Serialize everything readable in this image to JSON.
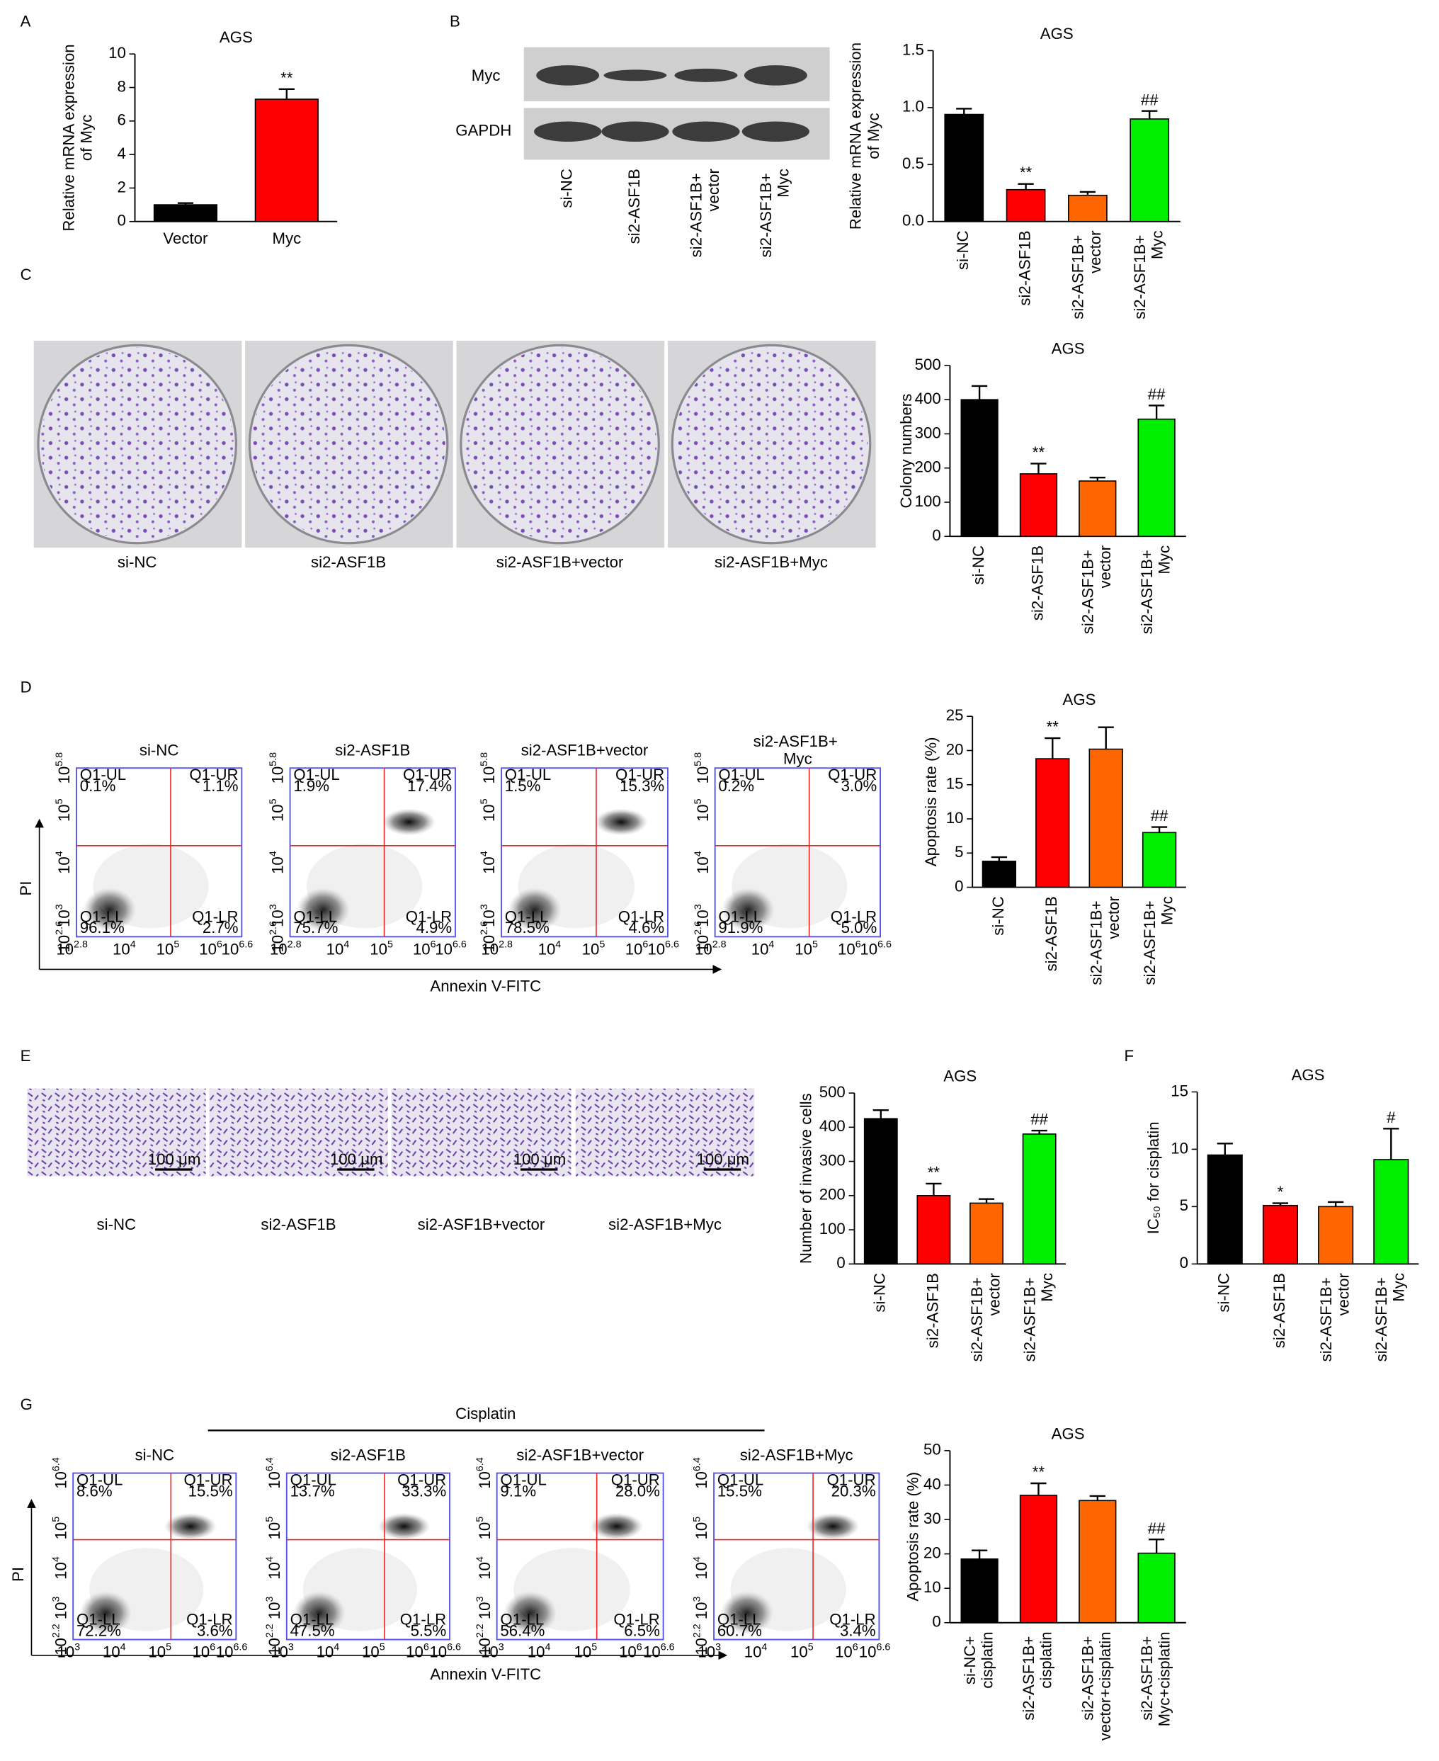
{
  "panel_letters": [
    "A",
    "B",
    "C",
    "D",
    "E",
    "F",
    "G"
  ],
  "blot": {
    "bands": [
      "Myc",
      "GAPDH"
    ],
    "lanes": [
      "si-NC",
      "si2-ASF1B",
      "si2-ASF1B+ vector",
      "si2-ASF1B+ Myc"
    ]
  },
  "colony_images": {
    "captions": [
      "si-NC",
      "si2-ASF1B",
      "si2-ASF1B+vector",
      "si2-ASF1B+Myc"
    ]
  },
  "invasion_images": {
    "captions": [
      "si-NC",
      "si2-ASF1B",
      "si2-ASF1B+vector",
      "si2-ASF1B+Myc"
    ],
    "scale_bars": [
      "100 μm",
      "100 μm",
      "100 μm",
      "100 μm"
    ]
  },
  "flow_D": {
    "x_label": "Annexin V-FITC",
    "y_label": "PI",
    "x_ticks": [
      {
        "base": "10",
        "exp": "2.8"
      },
      {
        "base": "10",
        "exp": "4"
      },
      {
        "base": "10",
        "exp": "5"
      },
      {
        "base": "10",
        "exp": "6"
      },
      {
        "base": "10",
        "exp": "6.6"
      }
    ],
    "y_ticks": [
      {
        "base": "10",
        "exp": "2.6"
      },
      {
        "base": "10",
        "exp": "3"
      },
      {
        "base": "10",
        "exp": "4"
      },
      {
        "base": "10",
        "exp": "5"
      },
      {
        "base": "10",
        "exp": "5.8"
      }
    ],
    "plots": [
      {
        "title": "si-NC",
        "quadrants": [
          {
            "name": "Q1-UL",
            "value": "0.1%"
          },
          {
            "name": "Q1-UR",
            "value": "1.1%"
          },
          {
            "name": "Q1-LL",
            "value": "96.1%"
          },
          {
            "name": "Q1-LR",
            "value": "2.7%"
          }
        ]
      },
      {
        "title": "si2-ASF1B",
        "quadrants": [
          {
            "name": "Q1-UL",
            "value": "1.9%"
          },
          {
            "name": "Q1-UR",
            "value": "17.4%"
          },
          {
            "name": "Q1-LL",
            "value": "75.7%"
          },
          {
            "name": "Q1-LR",
            "value": "4.9%"
          }
        ]
      },
      {
        "title": "si2-ASF1B+vector",
        "quadrants": [
          {
            "name": "Q1-UL",
            "value": "1.5%"
          },
          {
            "name": "Q1-UR",
            "value": "15.3%"
          },
          {
            "name": "Q1-LL",
            "value": "78.5%"
          },
          {
            "name": "Q1-LR",
            "value": "4.6%"
          }
        ]
      },
      {
        "title": "si2-ASF1B+ Myc",
        "quadrants": [
          {
            "name": "Q1-UL",
            "value": "0.2%"
          },
          {
            "name": "Q1-UR",
            "value": "3.0%"
          },
          {
            "name": "Q1-LL",
            "value": "91.9%"
          },
          {
            "name": "Q1-LR",
            "value": "5.0%"
          }
        ]
      }
    ]
  },
  "flow_G": {
    "treatment": "Cisplatin",
    "x_label": "Annexin V-FITC",
    "y_label": "PI",
    "x_ticks": [
      {
        "base": "10",
        "exp": "3"
      },
      {
        "base": "10",
        "exp": "4"
      },
      {
        "base": "10",
        "exp": "5"
      },
      {
        "base": "10",
        "exp": "6"
      },
      {
        "base": "10",
        "exp": "6.6"
      }
    ],
    "y_ticks": [
      {
        "base": "10",
        "exp": "2.2"
      },
      {
        "base": "10",
        "exp": "3"
      },
      {
        "base": "10",
        "exp": "4"
      },
      {
        "base": "10",
        "exp": "5"
      },
      {
        "base": "10",
        "exp": "6.4"
      }
    ],
    "plots": [
      {
        "title": "si-NC",
        "quadrants": [
          {
            "name": "Q1-UL",
            "value": "8.6%"
          },
          {
            "name": "Q1-UR",
            "value": "15.5%"
          },
          {
            "name": "Q1-LL",
            "value": "72.2%"
          },
          {
            "name": "Q1-LR",
            "value": "3.6%"
          }
        ]
      },
      {
        "title": "si2-ASF1B",
        "quadrants": [
          {
            "name": "Q1-UL",
            "value": "13.7%"
          },
          {
            "name": "Q1-UR",
            "value": "33.3%"
          },
          {
            "name": "Q1-LL",
            "value": "47.5%"
          },
          {
            "name": "Q1-LR",
            "value": "5.5%"
          }
        ]
      },
      {
        "title": "si2-ASF1B+vector",
        "quadrants": [
          {
            "name": "Q1-UL",
            "value": "9.1%"
          },
          {
            "name": "Q1-UR",
            "value": "28.0%"
          },
          {
            "name": "Q1-LL",
            "value": "56.4%"
          },
          {
            "name": "Q1-LR",
            "value": "6.5%"
          }
        ]
      },
      {
        "title": "si2-ASF1B+Myc",
        "quadrants": [
          {
            "name": "Q1-UL",
            "value": "15.5%"
          },
          {
            "name": "Q1-UR",
            "value": "20.3%"
          },
          {
            "name": "Q1-LL",
            "value": "60.7%"
          },
          {
            "name": "Q1-LR",
            "value": "3.4%"
          }
        ]
      }
    ]
  },
  "chart_data": [
    {
      "type": "bar",
      "title": "AGS",
      "ylabel": [
        "Relative mRNA expression",
        "of Myc"
      ],
      "categories": [
        "Vector",
        "Myc"
      ],
      "values": [
        1.0,
        7.3
      ],
      "errors": [
        0.1,
        0.6
      ],
      "colors": [
        "#000000",
        "#ff0000"
      ],
      "annotations": [
        null,
        "**"
      ],
      "ylim": [
        0,
        10
      ],
      "yticks": [
        0,
        2,
        4,
        6,
        8,
        10
      ]
    },
    {
      "type": "bar",
      "title": "AGS",
      "ylabel": [
        "Relative mRNA expression",
        "of Myc"
      ],
      "categories": [
        "si-NC",
        "si2-ASF1B",
        "si2-ASF1B+ vector",
        "si2-ASF1B+ Myc"
      ],
      "values": [
        0.94,
        0.28,
        0.23,
        0.9
      ],
      "errors": [
        0.05,
        0.05,
        0.03,
        0.07
      ],
      "colors": [
        "#000000",
        "#ff0000",
        "#ff6600",
        "#00ee00"
      ],
      "annotations": [
        null,
        "**",
        null,
        "##"
      ],
      "ylim": [
        0,
        1.5
      ],
      "yticks": [
        {
          "value": 0,
          "label": "0.0"
        },
        0.5,
        {
          "value": 1,
          "label": "1.0"
        },
        1.5
      ]
    },
    {
      "type": "bar",
      "title": "AGS",
      "ylabel": [
        "Colony numbers"
      ],
      "categories": [
        "si-NC",
        "si2-ASF1B",
        "si2-ASF1B+ vector",
        "si2-ASF1B+ Myc"
      ],
      "values": [
        400,
        183,
        162,
        343
      ],
      "errors": [
        40,
        30,
        10,
        40
      ],
      "colors": [
        "#000000",
        "#ff0000",
        "#ff6600",
        "#00ee00"
      ],
      "annotations": [
        null,
        "**",
        null,
        "##"
      ],
      "ylim": [
        0,
        500
      ],
      "yticks": [
        0,
        100,
        200,
        300,
        400,
        500
      ]
    },
    {
      "type": "bar",
      "title": "AGS",
      "ylabel": [
        "Apoptosis rate (%)"
      ],
      "categories": [
        "si-NC",
        "si2-ASF1B",
        "si2-ASF1B+ vector",
        "si2-ASF1B+ Myc"
      ],
      "values": [
        3.8,
        18.8,
        20.2,
        8.0
      ],
      "errors": [
        0.6,
        3.0,
        3.2,
        0.8
      ],
      "colors": [
        "#000000",
        "#ff0000",
        "#ff6600",
        "#00ee00"
      ],
      "annotations": [
        null,
        "**",
        null,
        "##"
      ],
      "ylim": [
        0,
        25
      ],
      "yticks": [
        0,
        5,
        10,
        15,
        20,
        25
      ]
    },
    {
      "type": "bar",
      "title": "AGS",
      "ylabel": [
        "Number of invasive cells"
      ],
      "categories": [
        "si-NC",
        "si2-ASF1B",
        "si2-ASF1B+ vector",
        "si2-ASF1B+ Myc"
      ],
      "values": [
        425,
        200,
        178,
        380
      ],
      "errors": [
        25,
        35,
        12,
        10
      ],
      "colors": [
        "#000000",
        "#ff0000",
        "#ff6600",
        "#00ee00"
      ],
      "annotations": [
        null,
        "**",
        null,
        "##"
      ],
      "ylim": [
        0,
        500
      ],
      "yticks": [
        0,
        100,
        200,
        300,
        400,
        500
      ]
    },
    {
      "type": "bar",
      "title": "AGS",
      "ylabel": [
        "IC₅₀ for cisplatin"
      ],
      "categories": [
        "si-NC",
        "si2-ASF1B",
        "si2-ASF1B+ vector",
        "si2-ASF1B+ Myc"
      ],
      "values": [
        9.5,
        5.1,
        5.0,
        9.1
      ],
      "errors": [
        1.0,
        0.2,
        0.4,
        2.7
      ],
      "colors": [
        "#000000",
        "#ff0000",
        "#ff6600",
        "#00ee00"
      ],
      "annotations": [
        null,
        "*",
        null,
        "#"
      ],
      "ylim": [
        0,
        15
      ],
      "yticks": [
        0,
        5,
        10,
        15
      ]
    },
    {
      "type": "bar",
      "title": "AGS",
      "ylabel": [
        "Apoptosis rate (%)"
      ],
      "categories": [
        "si-NC+ cisplatin",
        "si2-ASF1B+ cisplatin",
        "si2-ASF1B+ vector+cisplatin",
        "si2-ASF1B+ Myc+cisplatin"
      ],
      "values": [
        18.5,
        37,
        35.5,
        20.2
      ],
      "errors": [
        2.5,
        3.5,
        1.3,
        4.0
      ],
      "colors": [
        "#000000",
        "#ff0000",
        "#ff6600",
        "#00ee00"
      ],
      "annotations": [
        null,
        "**",
        null,
        "##"
      ],
      "ylim": [
        0,
        50
      ],
      "yticks": [
        0,
        10,
        20,
        30,
        40,
        50
      ]
    }
  ]
}
